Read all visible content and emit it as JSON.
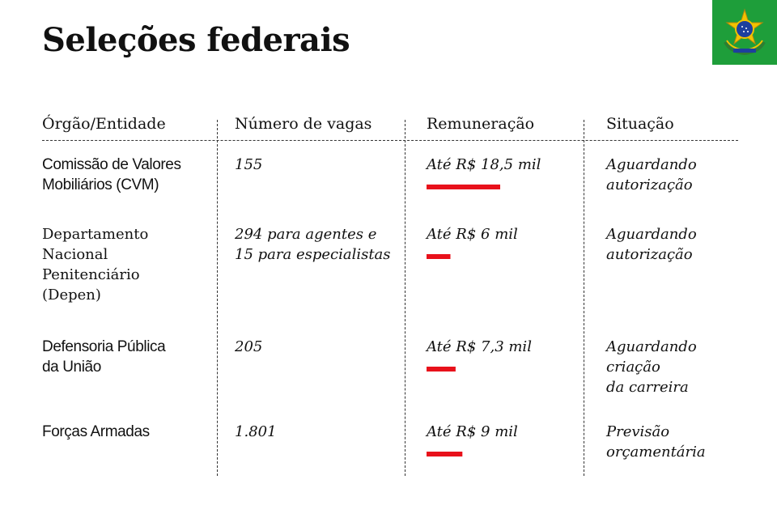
{
  "title": "Seleções federais",
  "accent_color": "#e8111b",
  "emblem": {
    "icon": "brazil-coat-of-arms-icon",
    "background": "#1e9e3a"
  },
  "headers": {
    "org": "Órgão/Entidade",
    "vacancies": "Número de vagas",
    "pay": "Remuneração",
    "status": "Situação"
  },
  "rows": [
    {
      "org_lines": [
        "Comissão de Valores",
        "Mobiliários (CVM)"
      ],
      "vacancy_lines": [
        "155"
      ],
      "pay": "Até R$ 18,5 mil",
      "status_lines": [
        "Aguardando",
        "autorização"
      ]
    },
    {
      "org_lines": [
        "Departamento",
        "Nacional",
        "Penitenciário",
        "(Depen)"
      ],
      "vacancy_lines": [
        "294 para agentes e",
        "15 para especialistas"
      ],
      "pay": "Até R$ 6 mil",
      "status_lines": [
        "Aguardando",
        "autorização"
      ]
    },
    {
      "org_lines": [
        "Defensoria Pública",
        "da União"
      ],
      "vacancy_lines": [
        "205"
      ],
      "pay": "Até R$ 7,3 mil",
      "status_lines": [
        "Aguardando",
        "criação",
        "da carreira"
      ]
    },
    {
      "org_lines": [
        "Forças Armadas"
      ],
      "vacancy_lines": [
        "1.801"
      ],
      "pay": "Até R$ 9 mil",
      "status_lines": [
        "Previsão",
        "orçamentária"
      ]
    }
  ],
  "chart_data": {
    "type": "bar",
    "orientation": "horizontal",
    "categories": [
      "Comissão de Valores Mobiliários (CVM)",
      "Departamento Nacional Penitenciário (Depen)",
      "Defensoria Pública da União",
      "Forças Armadas"
    ],
    "values": [
      18.5,
      6,
      7.3,
      9
    ],
    "unit": "R$ mil",
    "color": "#e8111b",
    "grid": false,
    "legend": "none"
  }
}
